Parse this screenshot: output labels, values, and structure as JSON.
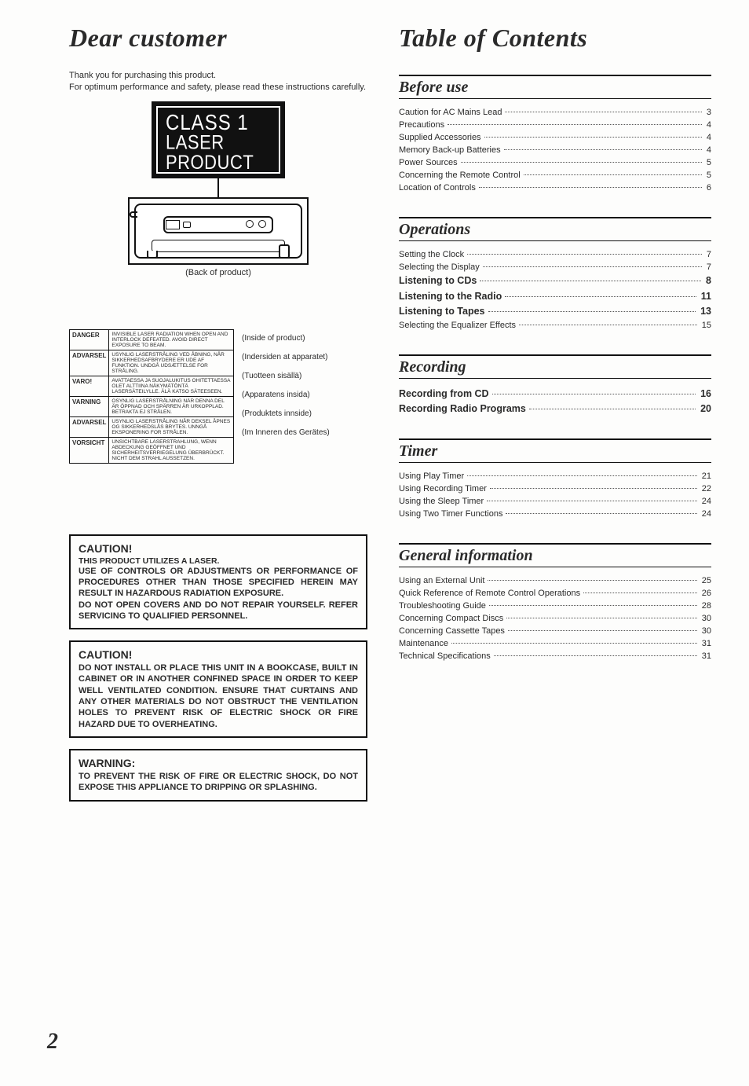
{
  "page_number": "2",
  "left": {
    "title": "Dear customer",
    "intro_lines": [
      "Thank you for purchasing this product.",
      "For optimum performance and safety, please read these instructions carefully."
    ],
    "laser_label": {
      "line1": "CLASS 1",
      "line2": "LASER PRODUCT"
    },
    "back_caption": "(Back of product)",
    "labels": [
      {
        "lang": "DANGER",
        "text": "INVISIBLE LASER RADIATION WHEN OPEN AND INTERLOCK DEFEATED. AVOID DIRECT EXPOSURE TO BEAM.",
        "note": "(Inside of product)"
      },
      {
        "lang": "ADVARSEL",
        "text": "USYNLIG LASERSTRÅLING VED ÅBNING, NÅR SIKKERHEDSAFBRYDERE ER UDE AF FUNKTION. UNDGÅ UDSÆTTELSE FOR STRÅLING.",
        "note": "(Indersiden at apparatet)"
      },
      {
        "lang": "VARO!",
        "text": "AVATTAESSA JA SUOJALUKITUS OHITETTAESSA OLET ALTTIINA NÄKYMÄTÖNTÄ LASERSÄTEILYLLE. ÄLÄ KATSO SÄTEESEEN.",
        "note": "(Tuotteen sisällä)"
      },
      {
        "lang": "VARNING",
        "text": "OSYNLIG LASERSTRÅLNING NÄR DENNA DEL ÄR ÖPPNAD OCH SPÄRREN ÄR URKOPPLAD. BETRAKTA EJ STRÅLEN.",
        "note": "(Apparatens insida)"
      },
      {
        "lang": "ADVARSEL",
        "text": "USYNLIG LASERSTRÅLING NÅR DEKSEL ÅPNES OG SIKKERHEDSLÅS BRYTES. UNNGÅ EKSPONERING FOR STRÅLEN.",
        "note": "(Produktets innside)"
      },
      {
        "lang": "VORSICHT",
        "text": "UNSICHTBARE LASERSTRAHLUNG, WENN ABDECKUNG GEÖFFNET UND SICHERHEITSVERRIEGELUNG ÜBERBRÜCKT. NICHT DEM STRAHL AUSSETZEN.",
        "note": "(Im Inneren des Gerätes)"
      }
    ],
    "caution1": {
      "heading": "CAUTION!",
      "sub": "THIS PRODUCT UTILIZES A LASER.",
      "body": "USE OF CONTROLS OR ADJUSTMENTS OR PERFORMANCE OF PROCEDURES OTHER THAN THOSE SPECIFIED HEREIN MAY RESULT IN HAZARDOUS RADIATION EXPOSURE.\nDO NOT OPEN COVERS AND DO NOT REPAIR YOURSELF. REFER SERVICING TO QUALIFIED PERSONNEL."
    },
    "caution2": {
      "heading": "CAUTION!",
      "body": "DO NOT INSTALL OR PLACE THIS UNIT IN A BOOKCASE, BUILT IN CABINET OR IN ANOTHER CONFINED SPACE IN ORDER TO KEEP WELL VENTILATED CONDITION. ENSURE THAT CURTAINS AND ANY OTHER MATERIALS DO NOT OBSTRUCT THE VENTILATION HOLES TO PREVENT RISK OF ELECTRIC SHOCK OR FIRE HAZARD DUE TO OVERHEATING."
    },
    "warning": {
      "heading": "WARNING:",
      "body": "TO PREVENT THE RISK OF FIRE OR ELECTRIC SHOCK, DO NOT EXPOSE THIS APPLIANCE TO DRIPPING OR SPLASHING."
    }
  },
  "right": {
    "title": "Table of Contents",
    "sections": [
      {
        "heading": "Before use",
        "items": [
          {
            "label": "Caution for AC Mains Lead",
            "page": "3",
            "bold": false
          },
          {
            "label": "Precautions",
            "page": "4",
            "bold": false
          },
          {
            "label": "Supplied Accessories",
            "page": "4",
            "bold": false
          },
          {
            "label": "Memory Back-up Batteries",
            "page": "4",
            "bold": false
          },
          {
            "label": "Power Sources",
            "page": "5",
            "bold": false
          },
          {
            "label": "Concerning the Remote Control",
            "page": "5",
            "bold": false
          },
          {
            "label": "Location of Controls",
            "page": "6",
            "bold": false
          }
        ]
      },
      {
        "heading": "Operations",
        "items": [
          {
            "label": "Setting the Clock",
            "page": "7",
            "bold": false
          },
          {
            "label": "Selecting the Display",
            "page": "7",
            "bold": false
          },
          {
            "label": "Listening to CDs",
            "page": "8",
            "bold": true
          },
          {
            "label": "Listening to the Radio",
            "page": "11",
            "bold": true
          },
          {
            "label": "Listening to Tapes",
            "page": "13",
            "bold": true
          },
          {
            "label": "Selecting the Equalizer Effects",
            "page": "15",
            "bold": false
          }
        ]
      },
      {
        "heading": "Recording",
        "items": [
          {
            "label": "Recording from CD",
            "page": "16",
            "bold": true
          },
          {
            "label": "Recording Radio Programs",
            "page": "20",
            "bold": true
          }
        ]
      },
      {
        "heading": "Timer",
        "items": [
          {
            "label": "Using Play Timer",
            "page": "21",
            "bold": false
          },
          {
            "label": "Using Recording Timer",
            "page": "22",
            "bold": false
          },
          {
            "label": "Using the Sleep Timer",
            "page": "24",
            "bold": false
          },
          {
            "label": "Using Two Timer Functions",
            "page": "24",
            "bold": false
          }
        ]
      },
      {
        "heading": "General information",
        "items": [
          {
            "label": "Using an External Unit",
            "page": "25",
            "bold": false
          },
          {
            "label": "Quick Reference of Remote Control Operations",
            "page": "26",
            "bold": false
          },
          {
            "label": "Troubleshooting Guide",
            "page": "28",
            "bold": false
          },
          {
            "label": "Concerning Compact Discs",
            "page": "30",
            "bold": false
          },
          {
            "label": "Concerning Cassette Tapes",
            "page": "30",
            "bold": false
          },
          {
            "label": "Maintenance",
            "page": "31",
            "bold": false
          },
          {
            "label": "Technical Specifications",
            "page": "31",
            "bold": false
          }
        ]
      }
    ]
  }
}
